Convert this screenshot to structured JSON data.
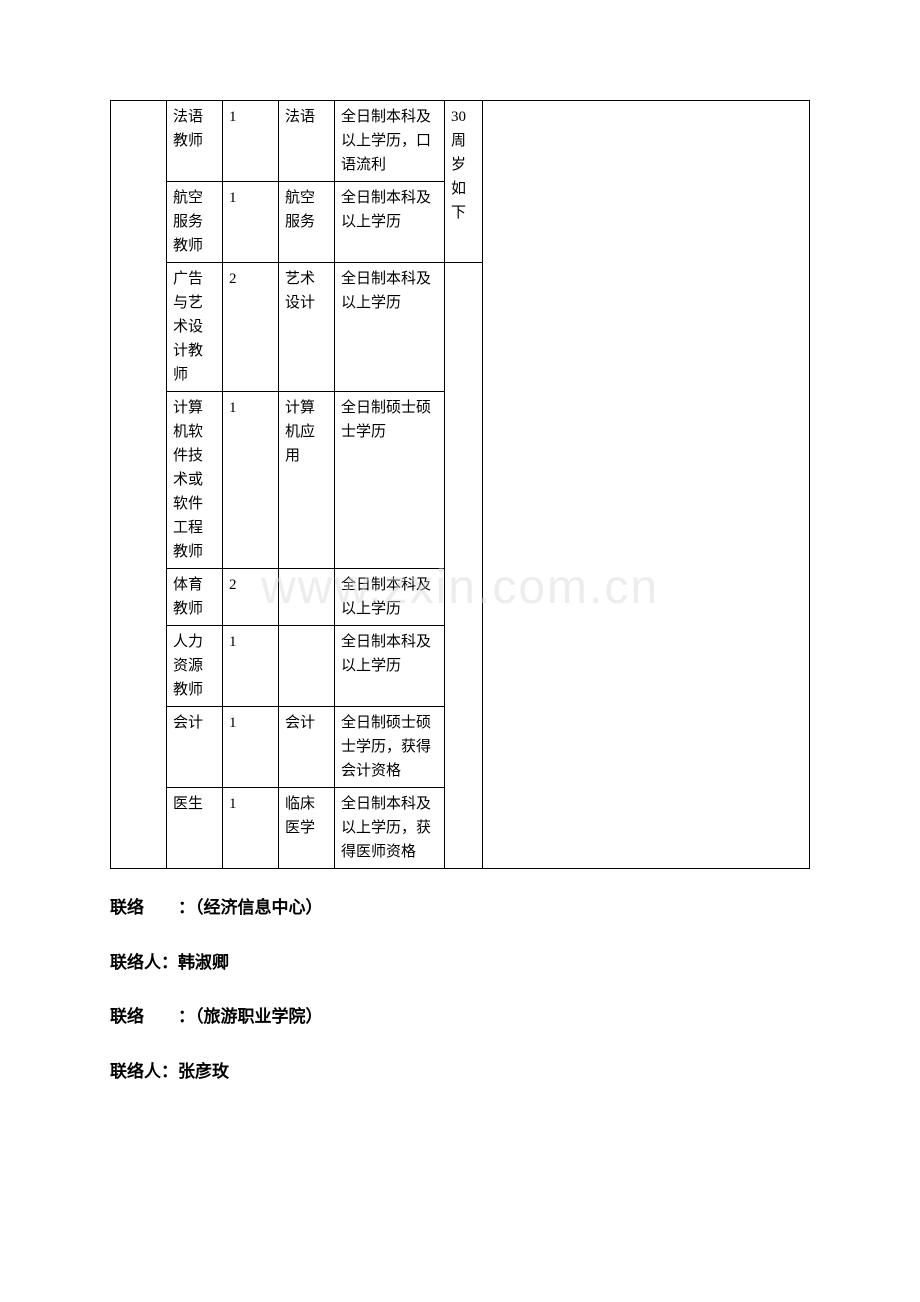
{
  "watermark_text": "www.zxin.com.cn",
  "table": {
    "border_color": "#000000",
    "font_size": 15,
    "columns": [
      {
        "width": 56
      },
      {
        "width": 56
      },
      {
        "width": 56
      },
      {
        "width": 56
      },
      {
        "width": 110
      },
      {
        "width": 38
      },
      {
        "width": 0
      }
    ],
    "spanning_col0_rows": 8,
    "spanning_col5_rows": 2,
    "spanning_col6_rows": 8,
    "col5_spanning_text": "30周岁如下",
    "rows": [
      {
        "position": "法语教师",
        "count": "1",
        "major": "法语",
        "requirement": "全日制本科及以上学历，口语流利"
      },
      {
        "position": "航空服务教师",
        "count": "1",
        "major": "航空服务",
        "requirement": "全日制本科及以上学历"
      },
      {
        "position": "广告与艺术设计教师",
        "count": "2",
        "major": "艺术设计",
        "requirement": "全日制本科及以上学历"
      },
      {
        "position": "计算机软件技术或软件工程教师",
        "count": "1",
        "major": "计算机应用",
        "requirement": "全日制硕士硕士学历"
      },
      {
        "position": "体育教师",
        "count": "2",
        "major": "",
        "requirement": "全日制本科及以上学历"
      },
      {
        "position": "人力资源教师",
        "count": "1",
        "major": "",
        "requirement": "全日制本科及以上学历"
      },
      {
        "position": "会计",
        "count": "1",
        "major": "会计",
        "requirement": "全日制硕士硕士学历，获得会计资格"
      },
      {
        "position": "医生",
        "count": "1",
        "major": "临床医学",
        "requirement": "全日制本科及以上学历，获得医师资格"
      }
    ]
  },
  "contacts": [
    {
      "label": "联络　　：",
      "value": "（经济信息中心）"
    },
    {
      "label": "联络人：",
      "value": "韩淑卿"
    },
    {
      "label": "联络　　：",
      "value": "（旅游职业学院）"
    },
    {
      "label": "联络人：",
      "value": "张彦玫"
    }
  ]
}
